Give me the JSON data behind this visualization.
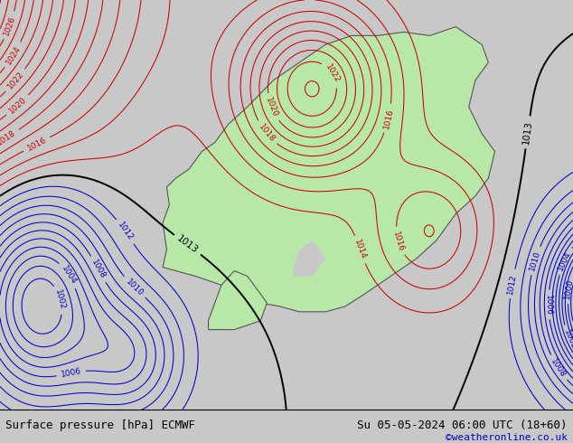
{
  "title_left": "Surface pressure [hPa] ECMWF",
  "title_right": "Su 05-05-2024 06:00 UTC (18+60)",
  "credit": "©weatheronline.co.uk",
  "bg_color": "#c8c8c8",
  "land_color": "#b8e8a8",
  "contour_color_low": "#0000cc",
  "contour_color_high": "#cc0000",
  "contour_color_mid": "#000000",
  "mid_pressure": 1013,
  "figsize": [
    6.34,
    4.9
  ],
  "dpi": 100,
  "xlim": [
    -8,
    36
  ],
  "ylim": [
    50,
    73
  ],
  "levels_min": 990,
  "levels_max": 1034,
  "label_step": 2
}
